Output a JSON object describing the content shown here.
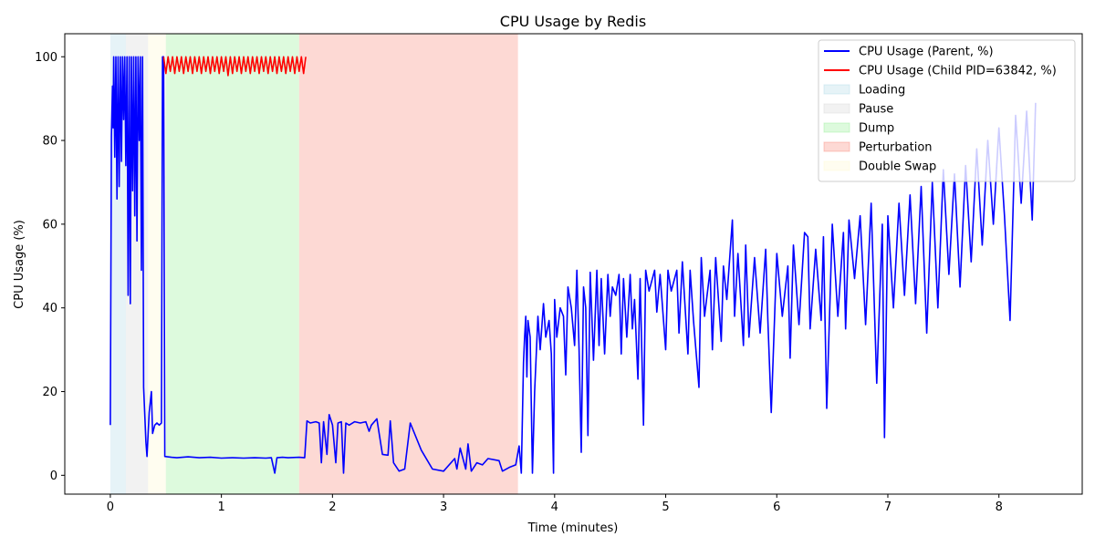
{
  "chart_data": {
    "type": "line",
    "title": "CPU Usage by Redis",
    "xlabel": "Time (minutes)",
    "ylabel": "CPU Usage (%)",
    "xlim": [
      -0.41,
      8.75
    ],
    "ylim": [
      -4.5,
      105.5
    ],
    "xticks": [
      0,
      1,
      2,
      3,
      4,
      5,
      6,
      7,
      8
    ],
    "yticks": [
      0,
      20,
      40,
      60,
      80,
      100
    ],
    "grid": false,
    "legend_position": "top-right",
    "phases": [
      {
        "name": "Loading",
        "x_start": 0.0,
        "x_end": 0.14,
        "color": "#add8e6"
      },
      {
        "name": "Pause",
        "x_start": 0.14,
        "x_end": 0.34,
        "color": "#d3d3d3"
      },
      {
        "name": "Double Swap",
        "x_start": 0.34,
        "x_end": 0.5,
        "color": "#fffacd"
      },
      {
        "name": "Dump",
        "x_start": 0.5,
        "x_end": 1.7,
        "color": "#90ee90"
      },
      {
        "name": "Perturbation",
        "x_start": 1.7,
        "x_end": 3.67,
        "color": "#fa8072"
      }
    ],
    "legend": [
      {
        "label": "CPU Usage (Parent, %)",
        "kind": "line",
        "color": "#0000ff"
      },
      {
        "label": "CPU Usage (Child PID=63842, %)",
        "kind": "line",
        "color": "#ff0000"
      },
      {
        "label": "Loading",
        "kind": "patch",
        "color": "#add8e6"
      },
      {
        "label": "Pause",
        "kind": "patch",
        "color": "#d3d3d3"
      },
      {
        "label": "Dump",
        "kind": "patch",
        "color": "#90ee90"
      },
      {
        "label": "Perturbation",
        "kind": "patch",
        "color": "#fa8072"
      },
      {
        "label": "Double Swap",
        "kind": "patch",
        "color": "#fffacd"
      }
    ],
    "series": [
      {
        "name": "CPU Usage (Parent, %)",
        "color": "#0000ff",
        "points": [
          [
            0.0,
            12
          ],
          [
            0.01,
            81
          ],
          [
            0.02,
            93
          ],
          [
            0.025,
            83
          ],
          [
            0.03,
            100
          ],
          [
            0.04,
            76
          ],
          [
            0.05,
            100
          ],
          [
            0.06,
            66
          ],
          [
            0.07,
            100
          ],
          [
            0.08,
            69
          ],
          [
            0.09,
            100
          ],
          [
            0.1,
            75
          ],
          [
            0.11,
            100
          ],
          [
            0.12,
            85
          ],
          [
            0.13,
            100
          ],
          [
            0.14,
            74
          ],
          [
            0.15,
            100
          ],
          [
            0.16,
            43
          ],
          [
            0.17,
            100
          ],
          [
            0.18,
            41
          ],
          [
            0.19,
            100
          ],
          [
            0.2,
            68
          ],
          [
            0.21,
            100
          ],
          [
            0.22,
            62
          ],
          [
            0.23,
            100
          ],
          [
            0.24,
            56
          ],
          [
            0.25,
            100
          ],
          [
            0.26,
            80
          ],
          [
            0.27,
            100
          ],
          [
            0.28,
            49
          ],
          [
            0.29,
            100
          ],
          [
            0.3,
            21
          ],
          [
            0.32,
            8
          ],
          [
            0.33,
            4.5
          ],
          [
            0.35,
            15
          ],
          [
            0.37,
            20
          ],
          [
            0.38,
            10
          ],
          [
            0.4,
            12
          ],
          [
            0.42,
            12.5
          ],
          [
            0.44,
            12
          ],
          [
            0.46,
            12.5
          ],
          [
            0.47,
            100
          ],
          [
            0.48,
            100
          ],
          [
            0.49,
            4.5
          ],
          [
            0.55,
            4.3
          ],
          [
            0.6,
            4.2
          ],
          [
            0.7,
            4.4
          ],
          [
            0.8,
            4.2
          ],
          [
            0.9,
            4.3
          ],
          [
            1.0,
            4.1
          ],
          [
            1.1,
            4.2
          ],
          [
            1.2,
            4.1
          ],
          [
            1.3,
            4.2
          ],
          [
            1.4,
            4.1
          ],
          [
            1.45,
            4.2
          ],
          [
            1.48,
            0.5
          ],
          [
            1.5,
            4.2
          ],
          [
            1.55,
            4.3
          ],
          [
            1.6,
            4.2
          ],
          [
            1.7,
            4.3
          ],
          [
            1.75,
            4.2
          ],
          [
            1.77,
            13
          ],
          [
            1.8,
            12.5
          ],
          [
            1.85,
            12.8
          ],
          [
            1.88,
            12.5
          ],
          [
            1.9,
            3
          ],
          [
            1.92,
            12.8
          ],
          [
            1.95,
            5
          ],
          [
            1.97,
            14.5
          ],
          [
            2.0,
            12
          ],
          [
            2.03,
            3
          ],
          [
            2.05,
            12.5
          ],
          [
            2.08,
            12.8
          ],
          [
            2.1,
            0.5
          ],
          [
            2.12,
            12.5
          ],
          [
            2.15,
            12
          ],
          [
            2.2,
            12.8
          ],
          [
            2.25,
            12.5
          ],
          [
            2.3,
            12.8
          ],
          [
            2.33,
            10.5
          ],
          [
            2.35,
            12
          ],
          [
            2.4,
            13.5
          ],
          [
            2.45,
            5
          ],
          [
            2.5,
            4.8
          ],
          [
            2.52,
            13
          ],
          [
            2.55,
            3
          ],
          [
            2.6,
            1
          ],
          [
            2.65,
            1.5
          ],
          [
            2.7,
            12.5
          ],
          [
            2.8,
            6
          ],
          [
            2.9,
            1.5
          ],
          [
            3.0,
            1
          ],
          [
            3.1,
            4
          ],
          [
            3.12,
            1.5
          ],
          [
            3.15,
            6.5
          ],
          [
            3.2,
            1.5
          ],
          [
            3.22,
            7.5
          ],
          [
            3.25,
            1
          ],
          [
            3.3,
            3
          ],
          [
            3.35,
            2.5
          ],
          [
            3.4,
            4
          ],
          [
            3.5,
            3.5
          ],
          [
            3.53,
            1
          ],
          [
            3.6,
            2
          ],
          [
            3.65,
            2.5
          ],
          [
            3.68,
            7
          ],
          [
            3.7,
            0.5
          ],
          [
            3.72,
            27
          ],
          [
            3.73,
            33
          ],
          [
            3.74,
            38
          ],
          [
            3.75,
            23.5
          ],
          [
            3.76,
            37
          ],
          [
            3.78,
            33
          ],
          [
            3.8,
            0.5
          ],
          [
            3.82,
            20
          ],
          [
            3.85,
            38
          ],
          [
            3.87,
            30
          ],
          [
            3.9,
            41
          ],
          [
            3.92,
            33
          ],
          [
            3.95,
            37
          ],
          [
            3.97,
            29
          ],
          [
            3.99,
            0.5
          ],
          [
            4.0,
            42
          ],
          [
            4.02,
            33
          ],
          [
            4.05,
            40
          ],
          [
            4.08,
            38
          ],
          [
            4.1,
            24
          ],
          [
            4.12,
            45
          ],
          [
            4.15,
            40
          ],
          [
            4.18,
            31
          ],
          [
            4.2,
            49
          ],
          [
            4.22,
            30
          ],
          [
            4.24,
            5.5
          ],
          [
            4.26,
            45
          ],
          [
            4.28,
            40
          ],
          [
            4.3,
            9.5
          ],
          [
            4.32,
            48.5
          ],
          [
            4.35,
            27.5
          ],
          [
            4.38,
            49
          ],
          [
            4.4,
            31
          ],
          [
            4.42,
            47
          ],
          [
            4.45,
            29
          ],
          [
            4.48,
            48
          ],
          [
            4.5,
            38
          ],
          [
            4.52,
            45
          ],
          [
            4.55,
            43
          ],
          [
            4.58,
            48
          ],
          [
            4.6,
            29
          ],
          [
            4.62,
            47
          ],
          [
            4.65,
            33
          ],
          [
            4.68,
            48
          ],
          [
            4.7,
            35
          ],
          [
            4.72,
            42
          ],
          [
            4.75,
            23
          ],
          [
            4.77,
            47
          ],
          [
            4.8,
            12
          ],
          [
            4.82,
            49
          ],
          [
            4.85,
            44
          ],
          [
            4.9,
            49
          ],
          [
            4.92,
            39
          ],
          [
            4.95,
            48
          ],
          [
            5.0,
            30
          ],
          [
            5.02,
            49
          ],
          [
            5.05,
            44
          ],
          [
            5.1,
            49
          ],
          [
            5.12,
            34
          ],
          [
            5.15,
            51
          ],
          [
            5.2,
            29
          ],
          [
            5.22,
            49
          ],
          [
            5.25,
            37
          ],
          [
            5.3,
            21
          ],
          [
            5.32,
            52
          ],
          [
            5.35,
            38
          ],
          [
            5.4,
            49
          ],
          [
            5.42,
            30
          ],
          [
            5.45,
            52
          ],
          [
            5.5,
            32
          ],
          [
            5.52,
            50
          ],
          [
            5.55,
            42
          ],
          [
            5.6,
            61
          ],
          [
            5.62,
            38
          ],
          [
            5.65,
            53
          ],
          [
            5.7,
            31
          ],
          [
            5.72,
            55
          ],
          [
            5.75,
            33
          ],
          [
            5.8,
            52
          ],
          [
            5.85,
            34
          ],
          [
            5.9,
            54
          ],
          [
            5.92,
            37
          ],
          [
            5.95,
            15
          ],
          [
            6.0,
            53
          ],
          [
            6.05,
            38
          ],
          [
            6.1,
            50
          ],
          [
            6.12,
            28
          ],
          [
            6.15,
            55
          ],
          [
            6.2,
            36
          ],
          [
            6.25,
            58
          ],
          [
            6.28,
            57
          ],
          [
            6.3,
            35
          ],
          [
            6.35,
            54
          ],
          [
            6.4,
            37
          ],
          [
            6.42,
            57
          ],
          [
            6.45,
            16
          ],
          [
            6.5,
            60
          ],
          [
            6.55,
            38
          ],
          [
            6.6,
            58
          ],
          [
            6.62,
            35
          ],
          [
            6.65,
            61
          ],
          [
            6.7,
            47
          ],
          [
            6.75,
            62
          ],
          [
            6.8,
            36
          ],
          [
            6.85,
            65
          ],
          [
            6.9,
            22
          ],
          [
            6.95,
            60
          ],
          [
            6.97,
            9
          ],
          [
            7.0,
            62
          ],
          [
            7.05,
            40
          ],
          [
            7.1,
            65
          ],
          [
            7.15,
            43
          ],
          [
            7.2,
            67
          ],
          [
            7.25,
            41
          ],
          [
            7.3,
            69
          ],
          [
            7.35,
            34
          ],
          [
            7.4,
            70
          ],
          [
            7.45,
            40
          ],
          [
            7.5,
            73
          ],
          [
            7.55,
            48
          ],
          [
            7.6,
            72
          ],
          [
            7.65,
            45
          ],
          [
            7.7,
            74
          ],
          [
            7.75,
            51
          ],
          [
            7.8,
            78
          ],
          [
            7.85,
            55
          ],
          [
            7.9,
            80
          ],
          [
            7.95,
            60
          ],
          [
            8.0,
            83
          ],
          [
            8.05,
            62
          ],
          [
            8.1,
            37
          ],
          [
            8.15,
            86
          ],
          [
            8.2,
            65
          ],
          [
            8.25,
            87
          ],
          [
            8.3,
            61
          ],
          [
            8.33,
            89
          ]
        ]
      },
      {
        "name": "CPU Usage (Child PID=63842, %)",
        "color": "#ff0000",
        "points": [
          [
            0.48,
            100
          ],
          [
            0.5,
            96
          ],
          [
            0.52,
            100
          ],
          [
            0.54,
            96.5
          ],
          [
            0.56,
            100
          ],
          [
            0.58,
            96
          ],
          [
            0.6,
            100
          ],
          [
            0.62,
            96.5
          ],
          [
            0.64,
            100
          ],
          [
            0.66,
            96
          ],
          [
            0.68,
            100
          ],
          [
            0.7,
            96.5
          ],
          [
            0.72,
            100
          ],
          [
            0.74,
            96
          ],
          [
            0.76,
            100
          ],
          [
            0.78,
            96.5
          ],
          [
            0.8,
            100
          ],
          [
            0.82,
            96
          ],
          [
            0.84,
            100
          ],
          [
            0.86,
            96.5
          ],
          [
            0.88,
            100
          ],
          [
            0.9,
            96
          ],
          [
            0.92,
            100
          ],
          [
            0.94,
            96.5
          ],
          [
            0.96,
            100
          ],
          [
            0.98,
            96
          ],
          [
            1.0,
            100
          ],
          [
            1.02,
            96.5
          ],
          [
            1.04,
            100
          ],
          [
            1.06,
            95.5
          ],
          [
            1.08,
            100
          ],
          [
            1.1,
            96
          ],
          [
            1.12,
            100
          ],
          [
            1.14,
            96.5
          ],
          [
            1.16,
            100
          ],
          [
            1.18,
            96
          ],
          [
            1.2,
            100
          ],
          [
            1.22,
            96.5
          ],
          [
            1.24,
            100
          ],
          [
            1.26,
            96
          ],
          [
            1.28,
            100
          ],
          [
            1.3,
            96.5
          ],
          [
            1.32,
            100
          ],
          [
            1.34,
            96
          ],
          [
            1.36,
            100
          ],
          [
            1.38,
            96.5
          ],
          [
            1.4,
            100
          ],
          [
            1.42,
            96
          ],
          [
            1.44,
            100
          ],
          [
            1.46,
            96.5
          ],
          [
            1.48,
            100
          ],
          [
            1.5,
            96
          ],
          [
            1.52,
            100
          ],
          [
            1.54,
            96.5
          ],
          [
            1.56,
            100
          ],
          [
            1.58,
            96
          ],
          [
            1.6,
            100
          ],
          [
            1.62,
            96.5
          ],
          [
            1.64,
            100
          ],
          [
            1.66,
            96
          ],
          [
            1.68,
            100
          ],
          [
            1.7,
            96.5
          ],
          [
            1.72,
            100
          ],
          [
            1.74,
            96
          ],
          [
            1.76,
            100
          ]
        ]
      }
    ]
  }
}
